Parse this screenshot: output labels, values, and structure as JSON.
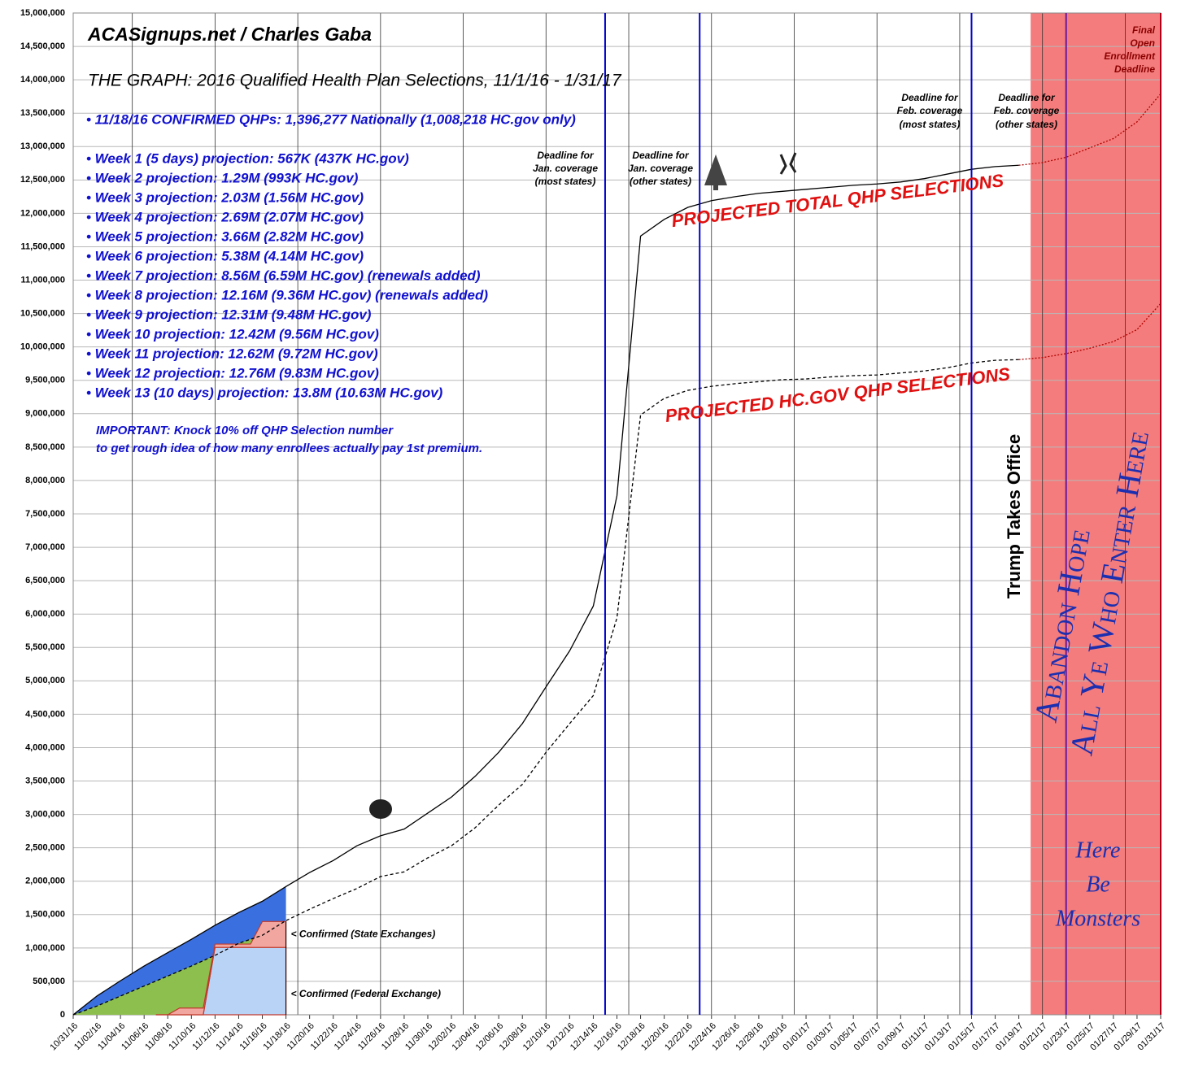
{
  "chart_data": {
    "type": "line",
    "title": "ACASignups.net / Charles Gaba",
    "subtitle": "THE GRAPH: 2016 Qualified Health Plan Selections, 11/1/16 - 1/31/17",
    "confirmed_note": "• 11/18/16 CONFIRMED QHPs: 1,396,277 Nationally (1,008,218 HC.gov only)",
    "weekly_notes": [
      "• Week 1 (5 days) projection: 567K (437K HC.gov)",
      "• Week 2 projection: 1.29M (993K HC.gov)",
      "• Week 3 projection: 2.03M (1.56M HC.gov)",
      "• Week 4 projection: 2.69M (2.07M HC.gov)",
      "• Week 5 projection: 3.66M (2.82M HC.gov)",
      "• Week 6 projection: 5.38M (4.14M HC.gov)",
      "• Week 7 projection: 8.56M (6.59M HC.gov) (renewals added)",
      "• Week 8 projection: 12.16M (9.36M HC.gov) (renewals added)",
      "• Week 9 projection: 12.31M (9.48M HC.gov)",
      "• Week 10 projection: 12.42M (9.56M HC.gov)",
      "• Week 11 projection: 12.62M (9.72M HC.gov)",
      "• Week 12 projection: 12.76M (9.83M HC.gov)",
      "• Week 13 (10 days) projection: 13.8M (10.63M HC.gov)"
    ],
    "important_note": [
      "IMPORTANT: Knock 10% off QHP Selection number",
      "to get rough idea of how many enrollees actually pay 1st premium."
    ],
    "deadline_jan_most": [
      "Deadline for",
      "Jan. coverage",
      "(most states)"
    ],
    "deadline_jan_other": [
      "Deadline for",
      "Jan. coverage",
      "(other states)"
    ],
    "deadline_feb_most": [
      "Deadline for",
      "Feb. coverage",
      "(most states)"
    ],
    "deadline_feb_other": [
      "Deadline for",
      "Feb. coverage",
      "(other states)"
    ],
    "final_deadline": [
      "Final",
      "Open",
      "Enrollment",
      "Deadline"
    ],
    "trump_note": "Trump Takes Office",
    "abandon_note": [
      "Abandon Hope",
      "All Ye Who Enter Here"
    ],
    "monsters_note": [
      "Here",
      "Be",
      "Monsters"
    ],
    "xlim": [
      "10/31/16",
      "01/31/17"
    ],
    "ylim": [
      0,
      15000000
    ],
    "yticks": [
      0,
      {
        "value": 500000,
        "label": "500,000"
      },
      {
        "value": 1000000,
        "label": "1,000,000"
      },
      {
        "value": 1500000,
        "label": "1,500,000"
      },
      {
        "value": 2000000,
        "label": "2,000,000"
      },
      {
        "value": 2500000,
        "label": "2,500,000"
      },
      {
        "value": 3000000,
        "label": "3,000,000"
      },
      {
        "value": 3500000,
        "label": "3,500,000"
      },
      {
        "value": 4000000,
        "label": "4,000,000"
      },
      {
        "value": 4500000,
        "label": "4,500,000"
      },
      {
        "value": 5000000,
        "label": "5,000,000"
      },
      {
        "value": 5500000,
        "label": "5,500,000"
      },
      {
        "value": 6000000,
        "label": "6,000,000"
      },
      {
        "value": 6500000,
        "label": "6,500,000"
      },
      {
        "value": 7000000,
        "label": "7,000,000"
      },
      {
        "value": 7500000,
        "label": "7,500,000"
      },
      {
        "value": 8000000,
        "label": "8,000,000"
      },
      {
        "value": 8500000,
        "label": "8,500,000"
      },
      {
        "value": 9000000,
        "label": "9,000,000"
      },
      {
        "value": 9500000,
        "label": "9,500,000"
      },
      {
        "value": 10000000,
        "label": "10,000,000"
      },
      {
        "value": 10500000,
        "label": "10,500,000"
      },
      {
        "value": 11000000,
        "label": "11,000,000"
      },
      {
        "value": 11500000,
        "label": "11,500,000"
      },
      {
        "value": 12000000,
        "label": "12,000,000"
      },
      {
        "value": 12500000,
        "label": "12,500,000"
      },
      {
        "value": 13000000,
        "label": "13,000,000"
      },
      {
        "value": 13500000,
        "label": "13,500,000"
      },
      {
        "value": 14000000,
        "label": "14,000,000"
      },
      {
        "value": 14500000,
        "label": "14,500,000"
      },
      {
        "value": 15000000,
        "label": "15,000,000"
      }
    ],
    "grid": true,
    "xgrid": [
      "11/05/16",
      "11/12/16",
      "11/19/16",
      "11/26/16",
      "12/03/16",
      "12/10/16",
      "12/17/16",
      "12/24/16",
      "12/31/16",
      "01/07/17",
      "01/14/17",
      "01/21/17",
      "01/28/17"
    ],
    "x": [
      "10/31/16",
      "11/02/16",
      "11/04/16",
      "11/06/16",
      "11/08/16",
      "11/10/16",
      "11/12/16",
      "11/14/16",
      "11/16/16",
      "11/18/16",
      "11/20/16",
      "11/22/16",
      "11/24/16",
      "11/26/16",
      "11/28/16",
      "11/30/16",
      "12/02/16",
      "12/04/16",
      "12/06/16",
      "12/08/16",
      "12/10/16",
      "12/12/16",
      "12/14/16",
      "12/16/16",
      "12/18/16",
      "12/20/16",
      "12/22/16",
      "12/24/16",
      "12/26/16",
      "12/28/16",
      "12/30/16",
      "01/01/17",
      "01/03/17",
      "01/05/17",
      "01/07/17",
      "01/09/17",
      "01/11/17",
      "01/13/17",
      "01/15/17",
      "01/17/17",
      "01/19/17",
      "01/21/17",
      "01/23/17",
      "01/25/17",
      "01/27/17",
      "01/29/17",
      "01/31/17"
    ],
    "series": [
      {
        "name": "PROJECTED TOTAL QHP SELECTIONS",
        "color": "#000000",
        "dash": "none",
        "fill_color": "#3a6fe0",
        "fill_to": "11/18/16",
        "tail_color": "#b00000",
        "values": [
          0,
          280000,
          510000,
          730000,
          930000,
          1130000,
          1340000,
          1530000,
          1700000,
          1920000,
          2130000,
          2310000,
          2530000,
          2680000,
          2780000,
          3020000,
          3260000,
          3570000,
          3930000,
          4360000,
          4910000,
          5450000,
          6120000,
          7770000,
          11660000,
          11910000,
          12090000,
          12190000,
          12250000,
          12300000,
          12330000,
          12360000,
          12390000,
          12420000,
          12440000,
          12470000,
          12520000,
          12590000,
          12660000,
          12700000,
          12720000,
          12760000,
          12840000,
          12980000,
          13120000,
          13370000,
          13790000
        ]
      },
      {
        "name": "PROJECTED HC.GOV QHP SELECTIONS",
        "color": "#000000",
        "dash": "4,3",
        "fill_color": "#8dbf4e",
        "fill_to": "11/18/16",
        "tail_color": "#b00000",
        "values": [
          0,
          130000,
          280000,
          430000,
          580000,
          730000,
          890000,
          1070000,
          1190000,
          1410000,
          1580000,
          1740000,
          1890000,
          2070000,
          2140000,
          2350000,
          2530000,
          2800000,
          3140000,
          3450000,
          3930000,
          4360000,
          4780000,
          5940000,
          8980000,
          9230000,
          9350000,
          9410000,
          9450000,
          9480000,
          9510000,
          9520000,
          9550000,
          9570000,
          9580000,
          9610000,
          9640000,
          9690000,
          9760000,
          9800000,
          9810000,
          9840000,
          9900000,
          9980000,
          10080000,
          10260000,
          10650000
        ]
      }
    ],
    "confirmed": {
      "x": [
        "11/07/16",
        "11/08/16",
        "11/09/16",
        "11/11/16",
        "11/12/16",
        "11/15/16",
        "11/16/16",
        "11/18/16"
      ],
      "series": [
        {
          "name": "< Confirmed (Federal Exchange)",
          "color": "#b9d3f7",
          "values": [
            0,
            0,
            0,
            0,
            1008218,
            1008218,
            1008218,
            1008218
          ]
        },
        {
          "name": "< Confirmed (State Exchanges)",
          "color": "#f2a6a0",
          "values": [
            0,
            0,
            100000,
            100000,
            50000,
            50000,
            388059,
            388059
          ]
        }
      ]
    },
    "markers": [
      {
        "date": "12/15/16",
        "color": "#0000cc"
      },
      {
        "date": "12/23/16",
        "color": "#0000cc"
      },
      {
        "date": "01/15/17",
        "color": "#0000cc"
      },
      {
        "date": "01/23/17",
        "color": "#6a1aa0"
      },
      {
        "date": "01/31/17",
        "color": "#b0001a"
      }
    ],
    "shade": {
      "from": "01/20/17",
      "to": "01/31/17",
      "color": "#f47c7c"
    }
  }
}
